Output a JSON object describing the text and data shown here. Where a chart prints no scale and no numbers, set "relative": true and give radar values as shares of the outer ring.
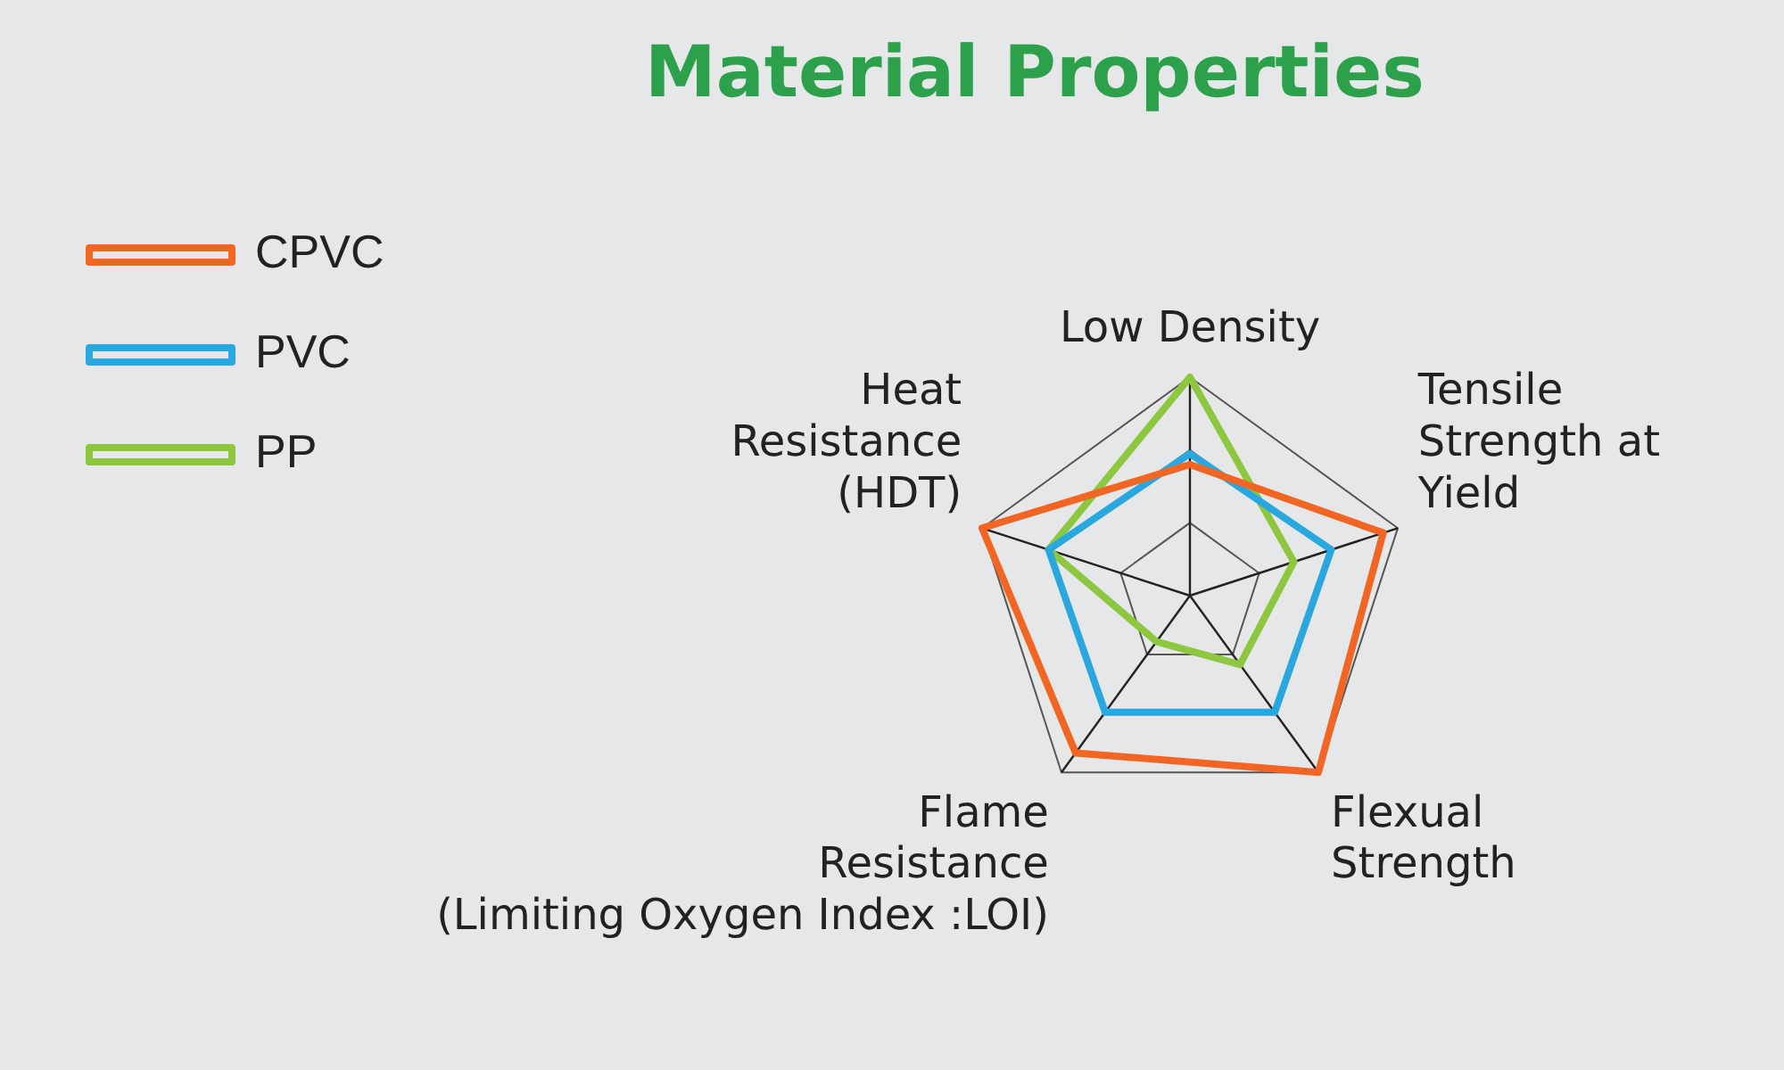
{
  "chart_data": {
    "type": "radar",
    "title": "Material Properties",
    "relative": true,
    "grid": true,
    "legend": "left",
    "marker": "none",
    "categories": [
      "Low Density",
      "Tensile Strength at Yield",
      "Flexual Strength",
      "Flame Resistance (Limiting Oxygen Index :LOI)",
      "Heat Resistance (HDT)"
    ],
    "series": [
      {
        "name": "CPVC",
        "color": "#f26522",
        "values": [
          0.6,
          0.93,
          1.0,
          0.89,
          1.0
        ]
      },
      {
        "name": "PVC",
        "color": "#29a8e0",
        "values": [
          0.65,
          0.68,
          0.66,
          0.66,
          0.68
        ]
      },
      {
        "name": "PP",
        "color": "#8dc63f",
        "values": [
          1.0,
          0.5,
          0.39,
          0.26,
          0.68
        ]
      }
    ]
  }
}
